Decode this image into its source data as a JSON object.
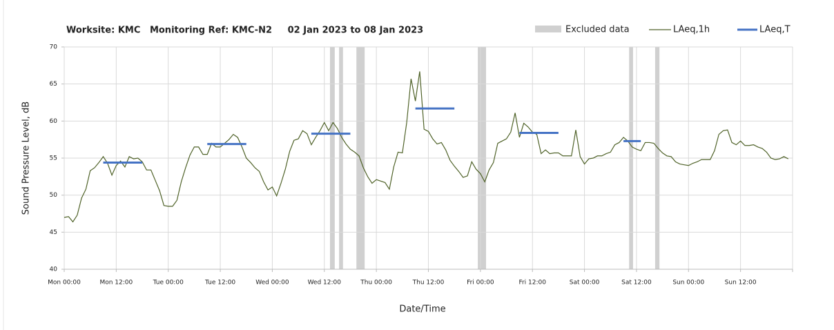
{
  "chart_data": {
    "type": "line",
    "title": "Worksite: KMC   Monitoring Ref: KMC-N2     02 Jan 2023 to 08 Jan 2023",
    "x_label": "Date/Time",
    "y_label": "Sound Pressure Level, dB",
    "xlim": [
      0,
      168
    ],
    "xticks": [
      {
        "value": 0,
        "label": "Mon 00:00"
      },
      {
        "value": 12,
        "label": "Mon 12:00"
      },
      {
        "value": 24,
        "label": "Tue 00:00"
      },
      {
        "value": 36,
        "label": "Tue 12:00"
      },
      {
        "value": 48,
        "label": "Wed 00:00"
      },
      {
        "value": 60,
        "label": "Wed 12:00"
      },
      {
        "value": 72,
        "label": "Thu 00:00"
      },
      {
        "value": 84,
        "label": "Thu 12:00"
      },
      {
        "value": 96,
        "label": "Fri 00:00"
      },
      {
        "value": 108,
        "label": "Fri 12:00"
      },
      {
        "value": 120,
        "label": "Sat 00:00"
      },
      {
        "value": 132,
        "label": "Sat 12:00"
      },
      {
        "value": 144,
        "label": "Sun 00:00"
      },
      {
        "value": 156,
        "label": "Sun 12:00"
      },
      168
    ],
    "ylim": [
      40,
      70
    ],
    "yticks": [
      40,
      45,
      50,
      55,
      60,
      65,
      70
    ],
    "grid": true,
    "legend": "top-right",
    "excluded": {
      "name": "Excluded data",
      "color": "#d0d0d0",
      "ranges": [
        [
          61.3,
          62.4
        ],
        [
          63.4,
          64.3
        ],
        [
          67.4,
          69.3
        ],
        [
          95.4,
          97.3
        ],
        [
          130.3,
          131.2
        ],
        [
          136.3,
          137.3
        ]
      ]
    },
    "series": [
      {
        "name": "LAeq,1h",
        "color": "#4f6228",
        "x": [
          0,
          1,
          2,
          3,
          4,
          5,
          6,
          7,
          8,
          9,
          10,
          11,
          12,
          13,
          14,
          15,
          16,
          17,
          18,
          19,
          20,
          21,
          22,
          23,
          24,
          25,
          26,
          27,
          28,
          29,
          30,
          31,
          32,
          33,
          34,
          35,
          36,
          37,
          38,
          39,
          40,
          41,
          42,
          43,
          44,
          45,
          46,
          47,
          48,
          49,
          50,
          51,
          52,
          53,
          54,
          55,
          56,
          57,
          58,
          59,
          60,
          61,
          62,
          63,
          64,
          65,
          66,
          67,
          68,
          69,
          70,
          71,
          72,
          73,
          74,
          75,
          76,
          77,
          78,
          79,
          80,
          81,
          82,
          83,
          84,
          85,
          86,
          87,
          88,
          89,
          90,
          91,
          92,
          93,
          94,
          95,
          96,
          97,
          98,
          99,
          100,
          101,
          102,
          103,
          104,
          105,
          106,
          107,
          108,
          109,
          110,
          111,
          112,
          113,
          114,
          115,
          116,
          117,
          118,
          119,
          120,
          121,
          122,
          123,
          124,
          125,
          126,
          127,
          128,
          129,
          130,
          131,
          132,
          133,
          134,
          135,
          136,
          137,
          138,
          139,
          140,
          141,
          142,
          143,
          144,
          145,
          146,
          147,
          148,
          149,
          150,
          151,
          152,
          153,
          154,
          155,
          156,
          157,
          158,
          159,
          160,
          161,
          162,
          163,
          164,
          165,
          166,
          167
        ],
        "values": [
          47.0,
          47.1,
          46.4,
          47.3,
          49.6,
          50.8,
          53.3,
          53.7,
          54.4,
          55.2,
          54.3,
          52.7,
          54.0,
          54.6,
          53.8,
          55.2,
          54.9,
          55.0,
          54.5,
          53.4,
          53.4,
          52.0,
          50.6,
          48.6,
          48.5,
          48.5,
          49.3,
          51.8,
          53.7,
          55.4,
          56.5,
          56.5,
          55.5,
          55.5,
          57.0,
          56.5,
          56.5,
          57.0,
          57.5,
          58.2,
          57.8,
          56.5,
          55.0,
          54.4,
          53.7,
          53.2,
          51.8,
          50.7,
          51.1,
          49.9,
          51.6,
          53.5,
          55.9,
          57.4,
          57.6,
          58.7,
          58.3,
          56.8,
          57.8,
          58.7,
          59.8,
          58.7,
          59.8,
          59.0,
          57.8,
          56.9,
          56.2,
          55.8,
          55.3,
          53.7,
          52.5,
          51.6,
          52.1,
          51.9,
          51.7,
          50.8,
          53.8,
          55.8,
          55.7,
          59.8,
          65.7,
          62.7,
          66.7,
          58.9,
          58.6,
          57.6,
          56.9,
          57.1,
          56.1,
          54.7,
          53.9,
          53.2,
          52.4,
          52.6,
          54.5,
          53.5,
          52.9,
          51.8,
          53.4,
          54.4,
          57.0,
          57.3,
          57.6,
          58.5,
          61.1,
          57.8,
          59.7,
          59.2,
          58.5,
          58.2,
          55.6,
          56.1,
          55.6,
          55.7,
          55.7,
          55.3,
          55.3,
          55.3,
          58.8,
          55.2,
          54.2,
          54.9,
          55.0,
          55.3,
          55.3,
          55.6,
          55.8,
          56.8,
          57.1,
          57.8,
          57.3,
          56.5,
          56.2,
          56.0,
          57.1,
          57.1,
          57.0,
          56.3,
          55.7,
          55.3,
          55.2,
          54.5,
          54.2,
          54.1,
          54.0,
          54.3,
          54.5,
          54.8,
          54.8,
          54.8,
          56.0,
          58.2,
          58.7,
          58.8,
          57.1,
          56.8,
          57.3,
          56.7,
          56.7,
          56.8,
          56.5,
          56.3,
          55.8,
          55.0,
          54.8,
          54.9,
          55.2,
          54.9
        ]
      },
      {
        "name": "LAeq,T",
        "color": "#4472c4",
        "x_start": [
          9,
          33,
          57,
          81,
          105,
          129
        ],
        "x_end": [
          18,
          42,
          66,
          90,
          114,
          133
        ],
        "values": [
          54.4,
          56.9,
          58.3,
          61.7,
          58.4,
          57.3
        ]
      }
    ]
  }
}
